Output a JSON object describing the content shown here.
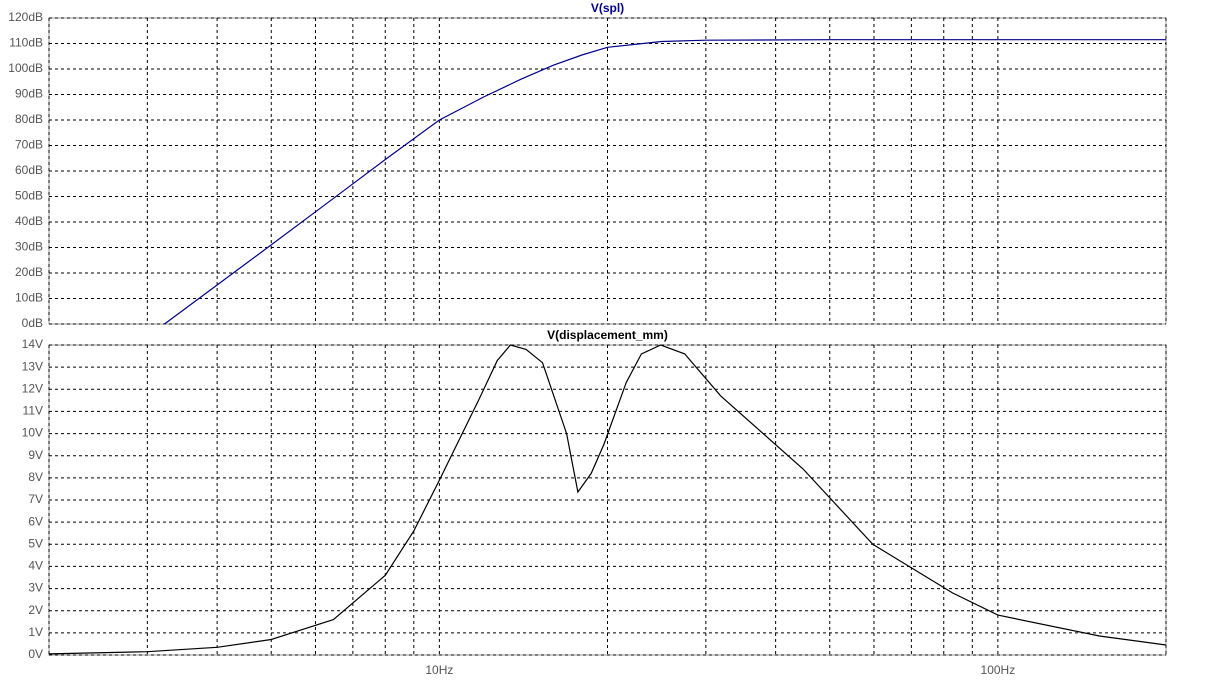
{
  "chart_data": [
    {
      "type": "line",
      "title": "V(spl)",
      "log_x": true,
      "grid": true,
      "xlim": [
        2,
        200
      ],
      "xgrid": [
        2,
        3,
        4,
        5,
        6,
        7,
        8,
        9,
        10,
        20,
        30,
        40,
        50,
        60,
        70,
        80,
        90,
        100,
        200
      ],
      "ylim": [
        0,
        120
      ],
      "yticks": [
        {
          "value": 0,
          "label": "0dB"
        },
        {
          "value": 10,
          "label": "10dB"
        },
        {
          "value": 20,
          "label": "20dB"
        },
        {
          "value": 30,
          "label": "30dB"
        },
        {
          "value": 40,
          "label": "40dB"
        },
        {
          "value": 50,
          "label": "50dB"
        },
        {
          "value": 60,
          "label": "60dB"
        },
        {
          "value": 70,
          "label": "70dB"
        },
        {
          "value": 80,
          "label": "80dB"
        },
        {
          "value": 90,
          "label": "90dB"
        },
        {
          "value": 100,
          "label": "100dB"
        },
        {
          "value": 110,
          "label": "110dB"
        },
        {
          "value": 120,
          "label": "120dB"
        }
      ],
      "x": [
        3.22,
        4,
        5,
        6,
        7,
        8,
        10,
        12,
        14,
        16,
        18,
        20,
        25,
        30,
        50,
        100,
        200
      ],
      "series": [
        {
          "color": "#00008b",
          "values": [
            0,
            15.3,
            31,
            44,
            55,
            64.5,
            80,
            89,
            96,
            101.5,
            105.5,
            108.5,
            110.8,
            111.3,
            111.5,
            111.5,
            111.5
          ]
        }
      ]
    },
    {
      "type": "line",
      "title": "V(displacement_mm)",
      "log_x": true,
      "grid": true,
      "xlim": [
        2,
        200
      ],
      "xgrid": [
        2,
        3,
        4,
        5,
        6,
        7,
        8,
        9,
        10,
        20,
        30,
        40,
        50,
        60,
        70,
        80,
        90,
        100,
        200
      ],
      "xticks": [
        {
          "value": 10,
          "label": "10Hz"
        },
        {
          "value": 100,
          "label": "100Hz"
        }
      ],
      "ylim": [
        0,
        14
      ],
      "yticks": [
        {
          "value": 0,
          "label": "0V"
        },
        {
          "value": 1,
          "label": "1V"
        },
        {
          "value": 2,
          "label": "2V"
        },
        {
          "value": 3,
          "label": "3V"
        },
        {
          "value": 4,
          "label": "4V"
        },
        {
          "value": 5,
          "label": "5V"
        },
        {
          "value": 6,
          "label": "6V"
        },
        {
          "value": 7,
          "label": "7V"
        },
        {
          "value": 8,
          "label": "8V"
        },
        {
          "value": 9,
          "label": "9V"
        },
        {
          "value": 10,
          "label": "10V"
        },
        {
          "value": 11,
          "label": "11V"
        },
        {
          "value": 12,
          "label": "12V"
        },
        {
          "value": 13,
          "label": "13V"
        },
        {
          "value": 14,
          "label": "14V"
        }
      ],
      "x": [
        2,
        3,
        4,
        5,
        6.46,
        8,
        9,
        10,
        11.75,
        12.7,
        13.4,
        14.3,
        15.3,
        16.9,
        17.7,
        18.7,
        19.7,
        21.6,
        23,
        24.9,
        27.5,
        31.9,
        44.8,
        59.7,
        83,
        100,
        152,
        200
      ],
      "series": [
        {
          "color": "#000000",
          "values": [
            0.05,
            0.15,
            0.35,
            0.7,
            1.6,
            3.6,
            5.6,
            7.9,
            11.5,
            13.3,
            14,
            13.8,
            13.2,
            10,
            7.36,
            8.2,
            9.5,
            12.3,
            13.6,
            14,
            13.6,
            11.7,
            8.4,
            5,
            2.8,
            1.8,
            0.86,
            0.45
          ]
        }
      ]
    }
  ]
}
